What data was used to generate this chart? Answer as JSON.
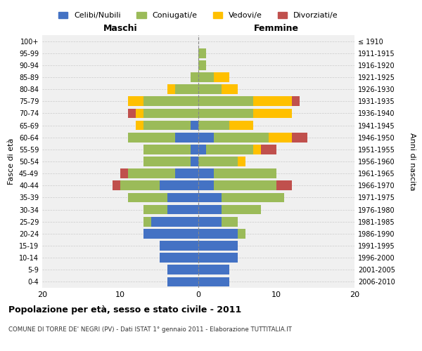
{
  "age_groups": [
    "0-4",
    "5-9",
    "10-14",
    "15-19",
    "20-24",
    "25-29",
    "30-34",
    "35-39",
    "40-44",
    "45-49",
    "50-54",
    "55-59",
    "60-64",
    "65-69",
    "70-74",
    "75-79",
    "80-84",
    "85-89",
    "90-94",
    "95-99",
    "100+"
  ],
  "birth_years": [
    "2006-2010",
    "2001-2005",
    "1996-2000",
    "1991-1995",
    "1986-1990",
    "1981-1985",
    "1976-1980",
    "1971-1975",
    "1966-1970",
    "1961-1965",
    "1956-1960",
    "1951-1955",
    "1946-1950",
    "1941-1945",
    "1936-1940",
    "1931-1935",
    "1926-1930",
    "1921-1925",
    "1916-1920",
    "1911-1915",
    "≤ 1910"
  ],
  "colors": {
    "celibi": "#4472C4",
    "coniugati": "#9BBB59",
    "vedovi": "#FFC000",
    "divorziati": "#C0504D"
  },
  "males": {
    "celibi": [
      4,
      4,
      5,
      5,
      7,
      6,
      4,
      4,
      5,
      3,
      1,
      1,
      3,
      1,
      0,
      0,
      0,
      0,
      0,
      0,
      0
    ],
    "coniugati": [
      0,
      0,
      0,
      0,
      0,
      1,
      3,
      5,
      5,
      6,
      6,
      6,
      6,
      6,
      7,
      7,
      3,
      1,
      0,
      0,
      0
    ],
    "vedovi": [
      0,
      0,
      0,
      0,
      0,
      0,
      0,
      0,
      0,
      0,
      0,
      0,
      0,
      1,
      1,
      2,
      1,
      0,
      0,
      0,
      0
    ],
    "divorziati": [
      0,
      0,
      0,
      0,
      0,
      0,
      0,
      0,
      1,
      1,
      0,
      0,
      0,
      0,
      1,
      0,
      0,
      0,
      0,
      0,
      0
    ]
  },
  "females": {
    "celibi": [
      4,
      4,
      5,
      5,
      5,
      3,
      3,
      3,
      2,
      2,
      0,
      1,
      2,
      0,
      0,
      0,
      0,
      0,
      0,
      0,
      0
    ],
    "coniugati": [
      0,
      0,
      0,
      0,
      1,
      2,
      5,
      8,
      8,
      8,
      5,
      6,
      7,
      4,
      7,
      7,
      3,
      2,
      1,
      1,
      0
    ],
    "vedovi": [
      0,
      0,
      0,
      0,
      0,
      0,
      0,
      0,
      0,
      0,
      1,
      1,
      3,
      3,
      5,
      5,
      2,
      2,
      0,
      0,
      0
    ],
    "divorziati": [
      0,
      0,
      0,
      0,
      0,
      0,
      0,
      0,
      2,
      0,
      0,
      2,
      2,
      0,
      0,
      1,
      0,
      0,
      0,
      0,
      0
    ]
  },
  "xlim": [
    -20,
    20
  ],
  "xticks": [
    -20,
    -10,
    0,
    10,
    20
  ],
  "xticklabels": [
    "20",
    "10",
    "0",
    "10",
    "20"
  ],
  "title": "Popolazione per età, sesso e stato civile - 2011",
  "subtitle": "COMUNE DI TORRE DE' NEGRI (PV) - Dati ISTAT 1° gennaio 2011 - Elaborazione TUTTITALIA.IT",
  "ylabel_left": "Fasce di età",
  "ylabel_right": "Anni di nascita",
  "label_maschi": "Maschi",
  "label_femmine": "Femmine",
  "legend_labels": [
    "Celibi/Nubili",
    "Coniugati/e",
    "Vedovi/e",
    "Divorziati/e"
  ],
  "bg_color": "#FFFFFF",
  "plot_bg_color": "#F0F0F0",
  "grid_color": "#CCCCCC"
}
